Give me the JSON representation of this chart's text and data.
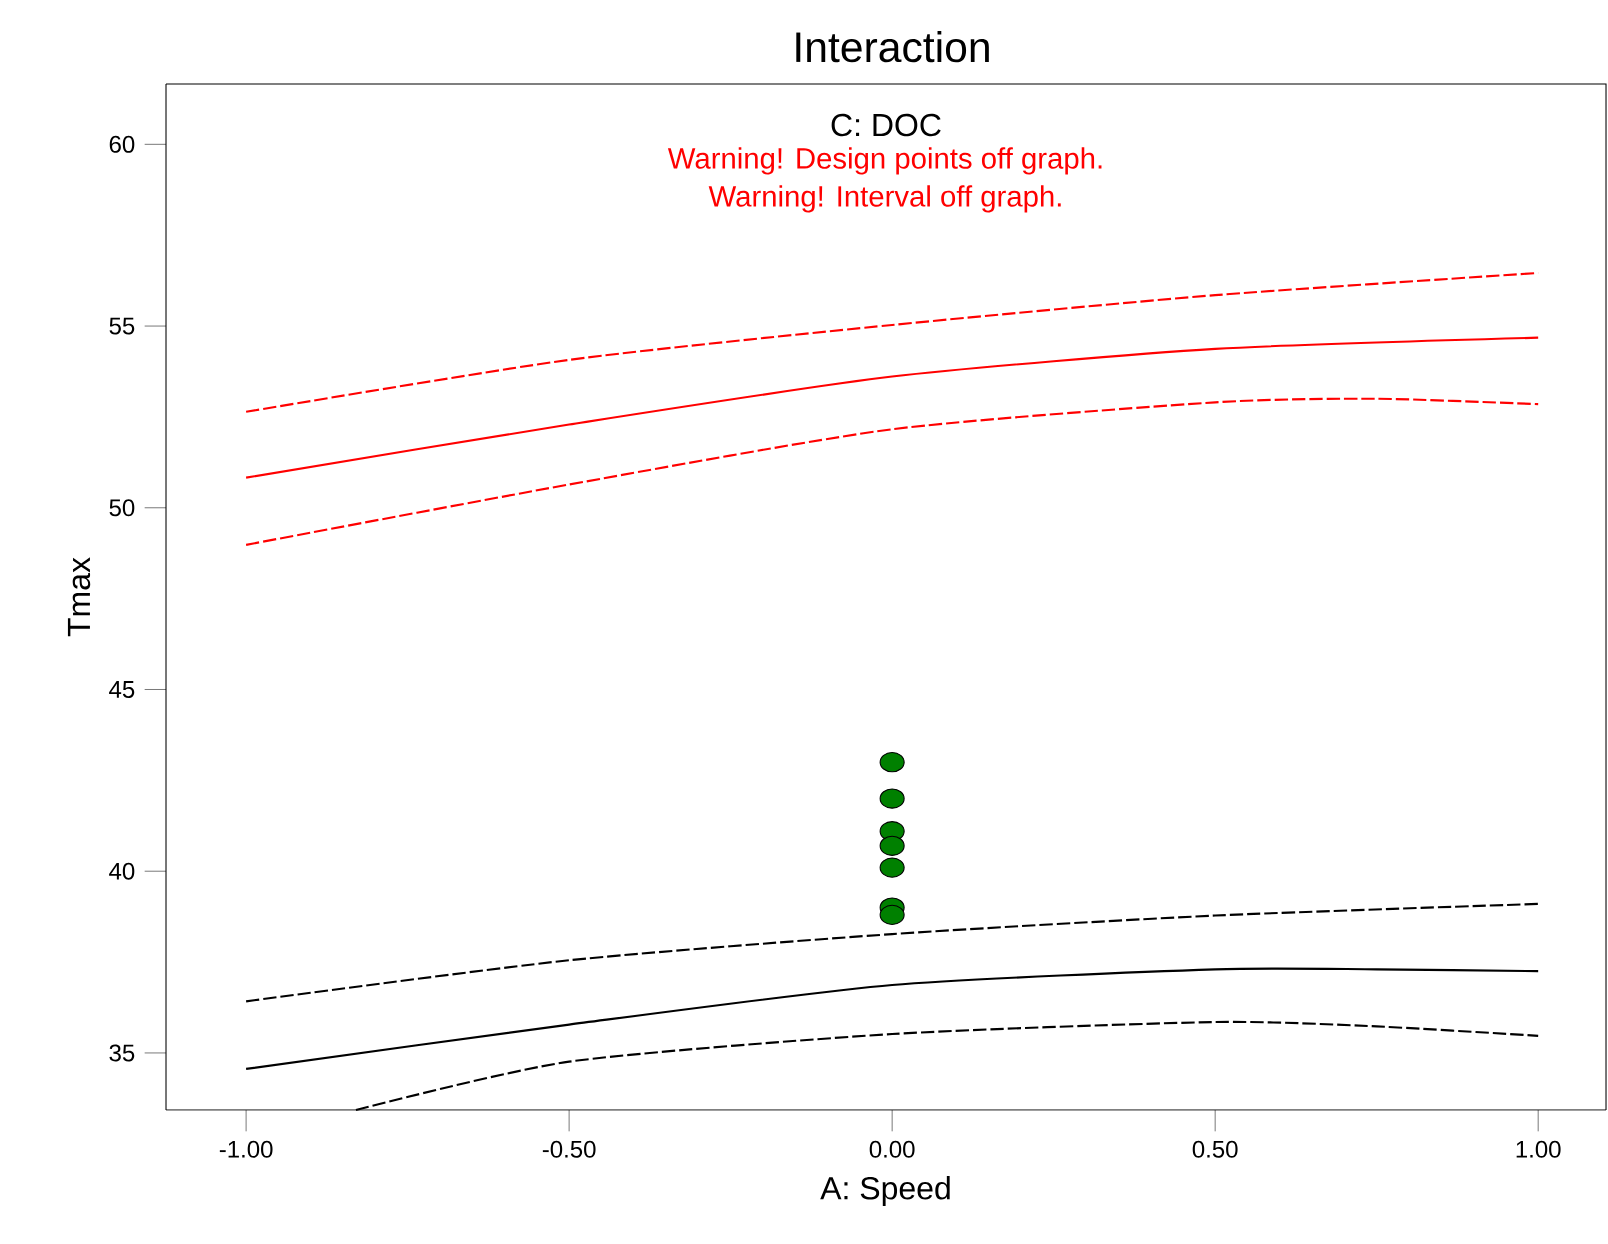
{
  "chart_data": {
    "type": "line",
    "title": "Interaction",
    "subtitle": "C: DOC",
    "xlabel": "A: Speed",
    "ylabel": "Tmax",
    "annotations": [
      "Warning! Design points off graph.",
      "Warning! Interval off graph."
    ],
    "xlim": [
      -1.124,
      1.105
    ],
    "ylim": [
      33.43,
      61.66
    ],
    "xticks": [
      {
        "value": -1,
        "label": "-1.00"
      },
      {
        "value": -0.5,
        "label": "-0.50"
      },
      {
        "value": 0,
        "label": "0.00"
      },
      {
        "value": 0.5,
        "label": "0.50"
      },
      {
        "value": 1,
        "label": "1.00"
      }
    ],
    "yticks": [
      35,
      40,
      45,
      50,
      55,
      60
    ],
    "series": [
      {
        "color": "#ff0000",
        "line_style": "dashed",
        "marker": "none",
        "x": [
          -1,
          -0.5,
          0,
          0.5,
          1
        ],
        "values": [
          52.64,
          54.07,
          55.03,
          55.85,
          56.46
        ]
      },
      {
        "color": "#ff0000",
        "line_style": "solid",
        "marker": "none",
        "x": [
          -1,
          -0.5,
          0,
          0.5,
          1
        ],
        "values": [
          50.83,
          52.29,
          53.61,
          54.37,
          54.68
        ]
      },
      {
        "color": "#ff0000",
        "line_style": "dashed",
        "marker": "none",
        "x": [
          -1,
          -0.5,
          0,
          0.5,
          0.75,
          1
        ],
        "values": [
          48.98,
          50.64,
          52.16,
          52.9,
          53.0,
          52.85
        ]
      },
      {
        "color": "#000000",
        "line_style": "dashed",
        "marker": "none",
        "x": [
          -1,
          -0.5,
          0,
          0.5,
          1
        ],
        "values": [
          36.42,
          37.55,
          38.27,
          38.78,
          39.1
        ]
      },
      {
        "color": "#000000",
        "line_style": "solid",
        "marker": "none",
        "x": [
          -1,
          -0.5,
          0,
          0.5,
          0.75,
          1
        ],
        "values": [
          34.56,
          35.78,
          36.87,
          37.3,
          37.3,
          37.25
        ]
      },
      {
        "color": "#000000",
        "line_style": "dashed",
        "marker": "none",
        "x": [
          -0.83,
          -0.5,
          0,
          0.5,
          0.75,
          1
        ],
        "values": [
          33.43,
          34.76,
          35.52,
          35.85,
          35.73,
          35.47
        ]
      },
      {
        "type": "scatter",
        "color": "#008000",
        "marker": "circle",
        "x": [
          0,
          0,
          0,
          0,
          0,
          0,
          0
        ],
        "values": [
          43.0,
          42.0,
          41.1,
          40.7,
          40.1,
          39.0,
          38.8
        ]
      }
    ]
  }
}
